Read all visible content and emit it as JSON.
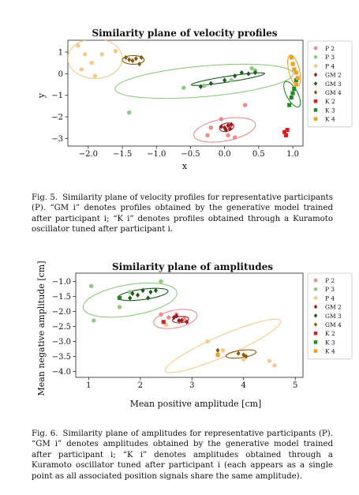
{
  "figure5": {
    "caption_label": "Fig. 5.",
    "caption_text": "Similarity plane of velocity profiles for representative participants (P). “GM i” denotes profiles obtained by the generative model trained after participant i; “K i” denotes profiles obtained through a Kuramoto oscillator tuned after participant i."
  },
  "figure6": {
    "caption_label": "Fig. 6.",
    "caption_text": "Similarity plane of amplitudes for representative participants (P). “GM i” denotes amplitudes obtained by the generative model trained after participant i; “K i” denotes amplitudes obtained through a Kuramoto oscillator tuned after participant i (each appears as a single point as all associated position signals share the same amplitude)."
  },
  "colors": {
    "P2": "#f08a8a",
    "P3": "#8fca82",
    "P4": "#f5c98c",
    "GM2": "#9c1a1a",
    "GM3": "#1d5a1d",
    "GM4": "#8a5a12",
    "K2": "#d61f1f",
    "K3": "#238a23",
    "K4": "#f0a020"
  },
  "chart_data": [
    {
      "type": "scatter",
      "title": "Similarity plane of velocity profiles",
      "xlabel": "x",
      "ylabel": "y",
      "xlim": [
        -2.3,
        1.15
      ],
      "ylim": [
        -3.35,
        1.55
      ],
      "xticks": [
        -2.0,
        -1.5,
        -1.0,
        -0.5,
        0.0,
        0.5,
        1.0
      ],
      "xtick_labels": [
        "−2.0",
        "−1.5",
        "−1.0",
        "−0.5",
        "0.0",
        "0.5",
        "1.0"
      ],
      "yticks": [
        1,
        0,
        -1,
        -2,
        -3
      ],
      "ytick_labels": [
        "1",
        "0",
        "−1",
        "−2",
        "−3"
      ],
      "grid": false,
      "legend_position": "right",
      "legend": [
        {
          "label": "P 2",
          "marker": "circle",
          "color_key": "P2"
        },
        {
          "label": "P 3",
          "marker": "circle",
          "color_key": "P3"
        },
        {
          "label": "P 4",
          "marker": "circle",
          "color_key": "P4"
        },
        {
          "label": "GM 2",
          "marker": "diamond",
          "color_key": "GM2"
        },
        {
          "label": "GM 3",
          "marker": "diamond",
          "color_key": "GM3"
        },
        {
          "label": "GM 4",
          "marker": "diamond",
          "color_key": "GM4"
        },
        {
          "label": "K 2",
          "marker": "square",
          "color_key": "K2"
        },
        {
          "label": "K 3",
          "marker": "square",
          "color_key": "K3"
        },
        {
          "label": "K 4",
          "marker": "square",
          "color_key": "K4"
        }
      ],
      "series": [
        {
          "key": "P2",
          "marker": "circle",
          "points": [
            [
              -0.25,
              -2.85
            ],
            [
              -0.2,
              -2.5
            ],
            [
              -0.05,
              -2.1
            ],
            [
              0.05,
              -2.85
            ],
            [
              0.15,
              -2.95
            ],
            [
              0.3,
              -1.45
            ],
            [
              0.08,
              -2.4
            ]
          ]
        },
        {
          "key": "P3",
          "marker": "circle",
          "points": [
            [
              -1.4,
              -1.8
            ],
            [
              -0.6,
              -0.65
            ],
            [
              -0.3,
              -0.55
            ],
            [
              0.1,
              -0.3
            ],
            [
              0.4,
              0.25
            ],
            [
              0.45,
              0.15
            ]
          ]
        },
        {
          "key": "P4",
          "marker": "circle",
          "points": [
            [
              -2.15,
              1.3
            ],
            [
              -2.05,
              0.9
            ],
            [
              -1.95,
              0.5
            ],
            [
              -2.1,
              0.2
            ],
            [
              -1.9,
              -0.1
            ],
            [
              -1.8,
              0.9
            ],
            [
              -1.6,
              1.05
            ]
          ]
        },
        {
          "key": "GM2",
          "marker": "diamond",
          "points": [
            [
              -0.05,
              -2.45
            ],
            [
              0.0,
              -2.5
            ],
            [
              0.02,
              -2.6
            ],
            [
              0.05,
              -2.4
            ],
            [
              0.08,
              -2.55
            ],
            [
              0.1,
              -2.35
            ]
          ]
        },
        {
          "key": "GM3",
          "marker": "diamond",
          "points": [
            [
              -0.35,
              -0.6
            ],
            [
              -0.2,
              -0.45
            ],
            [
              0.0,
              -0.3
            ],
            [
              0.15,
              -0.1
            ],
            [
              0.25,
              0.05
            ],
            [
              0.35,
              0.0
            ],
            [
              0.45,
              0.05
            ]
          ]
        },
        {
          "key": "GM4",
          "marker": "diamond",
          "points": [
            [
              -1.45,
              0.75
            ],
            [
              -1.4,
              0.65
            ],
            [
              -1.35,
              0.6
            ],
            [
              -1.3,
              0.7
            ],
            [
              -1.25,
              0.45
            ],
            [
              -1.22,
              0.75
            ]
          ]
        },
        {
          "key": "K2",
          "marker": "square",
          "points": [
            [
              0.88,
              -2.7
            ],
            [
              0.9,
              -2.85
            ],
            [
              0.92,
              -2.6
            ]
          ]
        },
        {
          "key": "K3",
          "marker": "square",
          "points": [
            [
              0.95,
              -1.45
            ],
            [
              0.98,
              -1.1
            ],
            [
              1.0,
              -0.9
            ],
            [
              1.02,
              -0.7
            ],
            [
              1.05,
              -0.3
            ]
          ]
        },
        {
          "key": "K4",
          "marker": "square",
          "points": [
            [
              0.98,
              0.75
            ],
            [
              1.0,
              0.45
            ],
            [
              1.02,
              0.2
            ],
            [
              1.05,
              0.05
            ],
            [
              1.07,
              -0.2
            ],
            [
              1.05,
              -0.5
            ]
          ]
        }
      ],
      "ellipses": [
        {
          "key": "P2",
          "cx": 0.0,
          "cy": -2.6,
          "rx": 0.38,
          "ry": 0.62,
          "angle": -30
        },
        {
          "key": "GM2",
          "cx": 0.03,
          "cy": -2.48,
          "rx": 0.1,
          "ry": 0.2,
          "angle": -10
        },
        {
          "key": "P3",
          "cx": -0.3,
          "cy": -0.35,
          "rx": 1.37,
          "ry": 0.68,
          "angle": 20
        },
        {
          "key": "GM3",
          "cx": 0.05,
          "cy": -0.25,
          "rx": 0.6,
          "ry": 0.12,
          "angle": 27
        },
        {
          "key": "P4",
          "cx": -1.9,
          "cy": 0.7,
          "rx": 0.4,
          "ry": 0.92,
          "angle": 0
        },
        {
          "key": "GM4",
          "cx": -1.34,
          "cy": 0.64,
          "rx": 0.16,
          "ry": 0.2,
          "angle": 0
        },
        {
          "key": "K3",
          "cx": 0.99,
          "cy": -0.95,
          "rx": 0.09,
          "ry": 0.6,
          "angle": 8
        },
        {
          "key": "K4",
          "cx": 1.02,
          "cy": 0.15,
          "rx": 0.08,
          "ry": 0.72,
          "angle": 4
        }
      ]
    },
    {
      "type": "scatter",
      "title": "Similarity plane of amplitudes",
      "xlabel": "Mean positive amplitude [cm]",
      "ylabel": "Mean negative amplitude [cm]",
      "xlim": [
        0.75,
        5.15
      ],
      "ylim": [
        -4.2,
        -0.72
      ],
      "xticks": [
        1,
        2,
        3,
        4,
        5
      ],
      "xtick_labels": [
        "1",
        "2",
        "3",
        "4",
        "5"
      ],
      "yticks": [
        -1.0,
        -1.5,
        -2.0,
        -2.5,
        -3.0,
        -3.5,
        -4.0
      ],
      "ytick_labels": [
        "−1.0",
        "−1.5",
        "−2.0",
        "−2.5",
        "−3.0",
        "−3.5",
        "−4.0"
      ],
      "grid": false,
      "legend_position": "right",
      "legend": [
        {
          "label": "P 2",
          "marker": "circle",
          "color_key": "P2"
        },
        {
          "label": "P 3",
          "marker": "circle",
          "color_key": "P3"
        },
        {
          "label": "P 4",
          "marker": "circle",
          "color_key": "P4"
        },
        {
          "label": "GM 2",
          "marker": "diamond",
          "color_key": "GM2"
        },
        {
          "label": "GM 3",
          "marker": "diamond",
          "color_key": "GM3"
        },
        {
          "label": "GM 4",
          "marker": "diamond",
          "color_key": "GM4"
        },
        {
          "label": "K 2",
          "marker": "square",
          "color_key": "K2"
        },
        {
          "label": "K 3",
          "marker": "square",
          "color_key": "K3"
        },
        {
          "label": "K 4",
          "marker": "square",
          "color_key": "K4"
        }
      ],
      "series": [
        {
          "key": "P2",
          "marker": "circle",
          "points": [
            [
              2.4,
              -2.1
            ],
            [
              2.55,
              -2.2
            ],
            [
              2.7,
              -2.1
            ],
            [
              2.75,
              -2.35
            ],
            [
              2.85,
              -2.25
            ]
          ]
        },
        {
          "key": "P3",
          "marker": "circle",
          "points": [
            [
              1.05,
              -1.15
            ],
            [
              1.1,
              -2.3
            ],
            [
              1.6,
              -1.85
            ],
            [
              1.8,
              -1.35
            ],
            [
              2.4,
              -1.0
            ]
          ]
        },
        {
          "key": "P4",
          "marker": "circle",
          "points": [
            [
              2.5,
              -2.45
            ],
            [
              3.3,
              -3.0
            ],
            [
              3.6,
              -3.3
            ],
            [
              4.0,
              -3.6
            ],
            [
              4.5,
              -3.65
            ],
            [
              4.6,
              -3.8
            ]
          ]
        },
        {
          "key": "GM2",
          "marker": "diamond",
          "points": [
            [
              2.65,
              -2.2
            ],
            [
              2.7,
              -2.15
            ],
            [
              2.75,
              -2.3
            ],
            [
              2.8,
              -2.3
            ],
            [
              2.9,
              -2.35
            ]
          ]
        },
        {
          "key": "GM3",
          "marker": "diamond",
          "points": [
            [
              1.8,
              -1.55
            ],
            [
              1.85,
              -1.4
            ],
            [
              1.95,
              -1.45
            ],
            [
              2.05,
              -1.3
            ],
            [
              2.15,
              -1.55
            ],
            [
              2.2,
              -1.35
            ],
            [
              2.3,
              -1.3
            ]
          ]
        },
        {
          "key": "GM4",
          "marker": "diamond",
          "points": [
            [
              3.5,
              -3.3
            ],
            [
              3.9,
              -3.4
            ],
            [
              4.0,
              -3.45
            ],
            [
              4.05,
              -3.5
            ]
          ]
        },
        {
          "key": "K2",
          "marker": "square",
          "points": [
            [
              2.45,
              -2.35
            ]
          ]
        },
        {
          "key": "K3",
          "marker": "square",
          "points": [
            [
              1.6,
              -1.55
            ]
          ]
        },
        {
          "key": "K4",
          "marker": "square",
          "points": [
            [
              3.5,
              -3.45
            ]
          ]
        }
      ],
      "ellipses": [
        {
          "key": "P3",
          "cx": 1.8,
          "cy": -1.62,
          "rx": 0.95,
          "ry": 0.5,
          "angle": 20
        },
        {
          "key": "GM3",
          "cx": 2.05,
          "cy": -1.43,
          "rx": 0.5,
          "ry": 0.17,
          "angle": 14
        },
        {
          "key": "P2",
          "cx": 2.68,
          "cy": -2.25,
          "rx": 0.45,
          "ry": 0.28,
          "angle": 27
        },
        {
          "key": "GM2",
          "cx": 2.78,
          "cy": -2.27,
          "rx": 0.16,
          "ry": 0.1,
          "angle": 15
        },
        {
          "key": "P4",
          "cx": 3.6,
          "cy": -3.15,
          "rx": 1.4,
          "ry": 0.3,
          "angle": 38
        },
        {
          "key": "GM4",
          "cx": 3.95,
          "cy": -3.42,
          "rx": 0.3,
          "ry": 0.12,
          "angle": 15
        }
      ]
    }
  ]
}
